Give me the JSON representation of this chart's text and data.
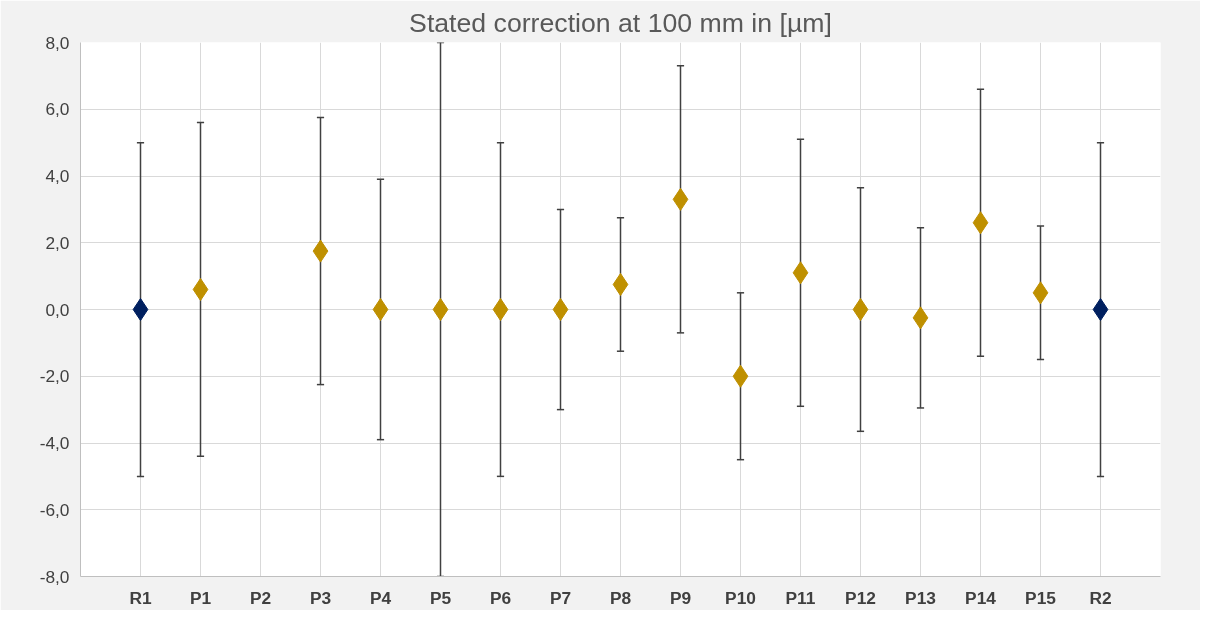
{
  "chart_data": {
    "type": "scatter",
    "title": "Stated correction at 100 mm in [µm]",
    "categories": [
      "R1",
      "P1",
      "P2",
      "P3",
      "P4",
      "P5",
      "P6",
      "P7",
      "P8",
      "P9",
      "P10",
      "P11",
      "P12",
      "P13",
      "P14",
      "P15",
      "R2"
    ],
    "values": [
      0,
      0.6,
      null,
      1.75,
      0,
      0,
      0,
      0,
      0.75,
      3.3,
      -2.0,
      1.1,
      0,
      -0.25,
      2.6,
      0.5,
      0
    ],
    "errors": [
      5,
      5,
      null,
      4,
      3.9,
      8,
      5,
      3,
      2,
      4,
      2.5,
      4,
      3.65,
      2.7,
      4,
      2,
      5
    ],
    "colors": [
      "#002060",
      "#bf9000",
      "#bf9000",
      "#bf9000",
      "#bf9000",
      "#bf9000",
      "#bf9000",
      "#bf9000",
      "#bf9000",
      "#bf9000",
      "#bf9000",
      "#bf9000",
      "#bf9000",
      "#bf9000",
      "#bf9000",
      "#bf9000",
      "#002060"
    ],
    "ylim": [
      -8,
      8
    ],
    "yticks": [
      {
        "value": -8,
        "label": "-8,0"
      },
      {
        "value": -6,
        "label": "-6,0"
      },
      {
        "value": -4,
        "label": "-4,0"
      },
      {
        "value": -2,
        "label": "-2,0"
      },
      {
        "value": 0,
        "label": "0,0"
      },
      {
        "value": 2,
        "label": "2,0"
      },
      {
        "value": 4,
        "label": "4,0"
      },
      {
        "value": 6,
        "label": "6,0"
      },
      {
        "value": 8,
        "label": "8,0"
      }
    ],
    "grid": true,
    "marker": "diamond"
  }
}
